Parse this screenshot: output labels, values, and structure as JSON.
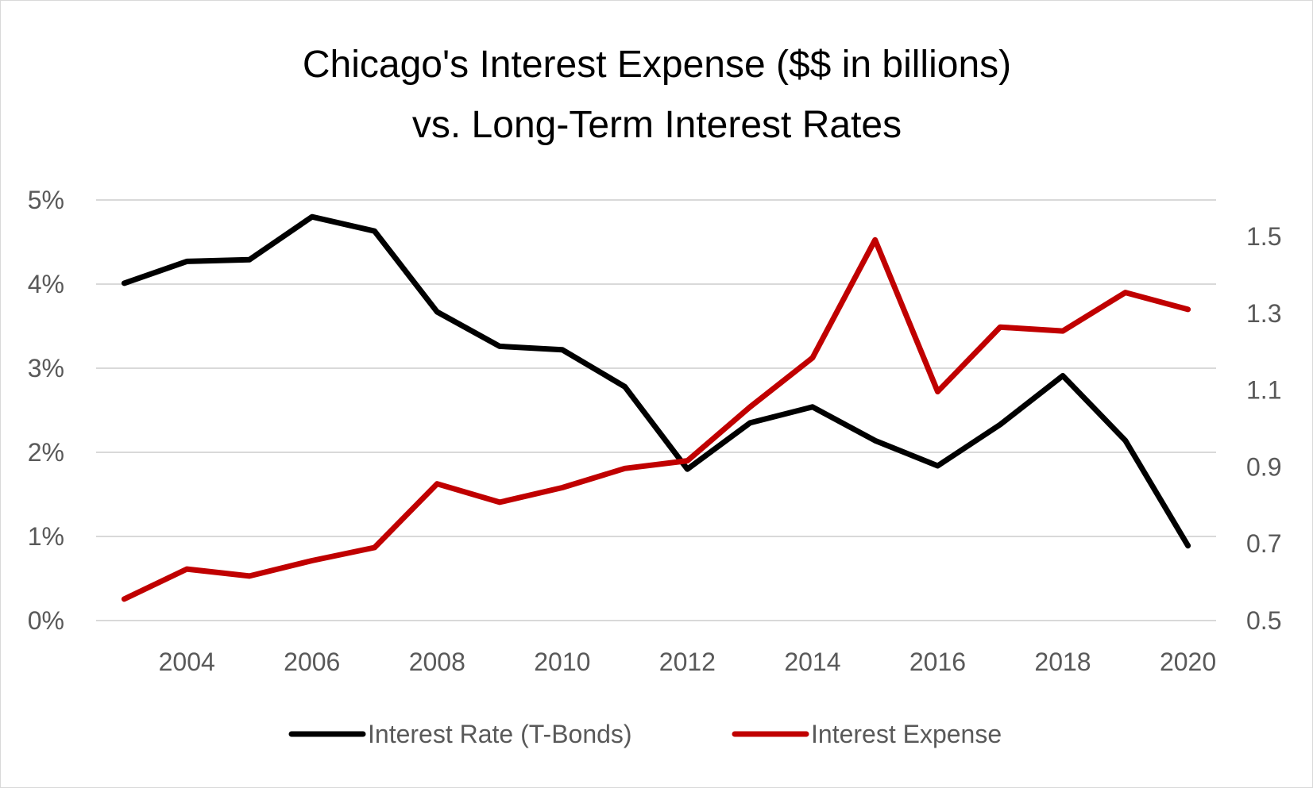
{
  "chart_data": {
    "type": "line",
    "title_lines": [
      "Chicago's Interest Expense ($$ in billions)",
      "vs. Long-Term Interest Rates"
    ],
    "xlabel": "",
    "ylabel": "",
    "x": [
      2003,
      2004,
      2005,
      2006,
      2007,
      2008,
      2009,
      2010,
      2011,
      2012,
      2013,
      2014,
      2015,
      2016,
      2017,
      2018,
      2019,
      2020
    ],
    "x_ticks": [
      2004,
      2006,
      2008,
      2010,
      2012,
      2014,
      2016,
      2018,
      2020
    ],
    "x_tick_labels": [
      "2004",
      "2006",
      "2008",
      "2010",
      "2012",
      "2014",
      "2016",
      "2018",
      "2020"
    ],
    "xlim": [
      2002.55,
      2020.45
    ],
    "y_left": {
      "ylim": [
        0,
        5
      ],
      "ticks": [
        0,
        1,
        2,
        3,
        4,
        5
      ],
      "tick_labels": [
        "0%",
        "1%",
        "2%",
        "3%",
        "4%",
        "5%"
      ]
    },
    "y_right": {
      "ylim": [
        0.5,
        1.595
      ],
      "ticks": [
        0.5,
        0.7,
        0.9,
        1.1,
        1.3,
        1.5
      ],
      "tick_labels": [
        "0.5",
        "0.7",
        "0.9",
        "1.1",
        "1.3",
        "1.5"
      ]
    },
    "grid": true,
    "legend_position": "bottom",
    "series": [
      {
        "name": "Interest Rate (T-Bonds)",
        "axis": "left",
        "color": "#000000",
        "values": [
          4.01,
          4.27,
          4.29,
          4.8,
          4.63,
          3.67,
          3.26,
          3.22,
          2.78,
          1.8,
          2.35,
          2.54,
          2.14,
          1.84,
          2.33,
          2.91,
          2.14,
          0.89
        ]
      },
      {
        "name": "Interest Expense",
        "axis": "right",
        "color": "#c00000",
        "values": [
          0.556,
          0.634,
          0.616,
          0.656,
          0.69,
          0.856,
          0.808,
          0.846,
          0.896,
          0.916,
          1.056,
          1.184,
          1.491,
          1.096,
          1.264,
          1.254,
          1.354,
          1.31
        ]
      }
    ]
  }
}
